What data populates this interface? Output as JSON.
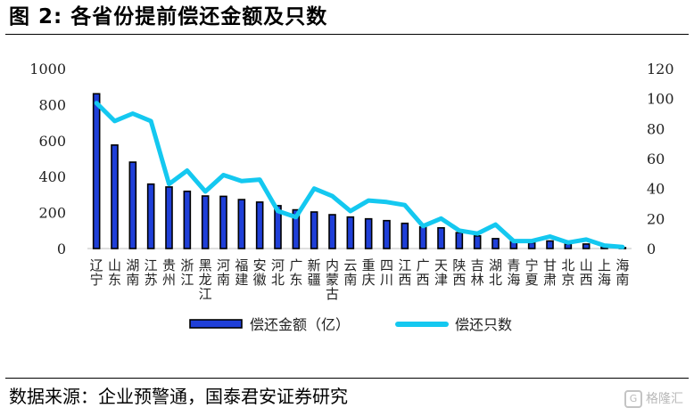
{
  "figure": {
    "title": "图 2:  各省份提前偿还金额及只数",
    "source": "数据来源：企业预警通，国泰君安证券研究",
    "watermark": "格隆汇"
  },
  "colors": {
    "bar_fill": "#1f3fd8",
    "bar_edge": "#000000",
    "line": "#14c8f0",
    "axis": "#bfbfbf"
  },
  "chart_data": {
    "type": "bar",
    "categories": [
      "辽宁",
      "山东",
      "湖南",
      "江苏",
      "贵州",
      "浙江",
      "黑龙江",
      "河南",
      "福建",
      "安徽",
      "河北",
      "广东",
      "新疆",
      "内蒙古",
      "云南",
      "重庆",
      "四川",
      "江西",
      "广西",
      "天津",
      "陕西",
      "吉林",
      "湖北",
      "青海",
      "宁夏",
      "甘肃",
      "北京",
      "山西",
      "上海",
      "海南"
    ],
    "series": [
      {
        "name": "偿还金额（亿）",
        "type": "bar",
        "axis": "left",
        "values": [
          860,
          575,
          480,
          358,
          342,
          318,
          292,
          290,
          272,
          258,
          238,
          215,
          203,
          188,
          175,
          165,
          155,
          140,
          120,
          115,
          88,
          70,
          55,
          38,
          32,
          42,
          25,
          25,
          10,
          5
        ]
      },
      {
        "name": "偿还只数",
        "type": "line",
        "axis": "right",
        "values": [
          97,
          85,
          90,
          85,
          43,
          52,
          38,
          49,
          45,
          46,
          25,
          21,
          40,
          35,
          25,
          32,
          31,
          29,
          15,
          20,
          12,
          10,
          16,
          5,
          5,
          8,
          4,
          6,
          2,
          1
        ]
      }
    ],
    "y_left": {
      "range": [
        0,
        1000
      ],
      "ticks": [
        "0",
        "200",
        "400",
        "600",
        "800",
        "1000"
      ]
    },
    "y_right": {
      "range": [
        0,
        120
      ],
      "ticks": [
        "0",
        "20",
        "40",
        "60",
        "80",
        "100",
        "120"
      ]
    },
    "legend": "bottom",
    "grid": false
  }
}
